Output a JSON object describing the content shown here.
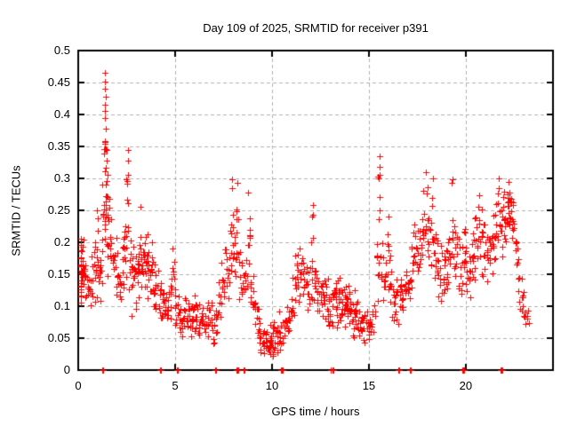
{
  "chart_data": {
    "type": "scatter",
    "title": "Day 109 of 2025, SRMTID for receiver p391",
    "xlabel": "GPS time / hours",
    "ylabel": "SRMTID / TECUs",
    "xlim": [
      0,
      24.5
    ],
    "ylim": [
      0,
      0.5
    ],
    "xticks": [
      0,
      5,
      10,
      15,
      20
    ],
    "xtick_labels": [
      "0",
      "5",
      "10",
      "15",
      "20"
    ],
    "yticks": [
      0,
      0.05,
      0.1,
      0.15,
      0.2,
      0.25,
      0.3,
      0.35,
      0.4,
      0.45,
      0.5
    ],
    "ytick_labels": [
      "0",
      "0.05",
      "0.1",
      "0.15",
      "0.2",
      "0.25",
      "0.3",
      "0.35",
      "0.4",
      "0.45",
      "0.5"
    ],
    "grid": true,
    "legend": "none",
    "marker": {
      "shape": "plus",
      "color": "#ff0000",
      "size": 7
    },
    "grid_color": "#b0b0b0",
    "border_color": "#000000",
    "peak_point": [
      1.37,
      0.465
    ],
    "outlier_points": [
      [
        1.36,
        0.465
      ],
      [
        1.38,
        0.452
      ],
      [
        1.37,
        0.44
      ],
      [
        1.4,
        0.428
      ],
      [
        1.36,
        0.415
      ],
      [
        1.39,
        0.405
      ],
      [
        1.37,
        0.395
      ],
      [
        1.41,
        0.378
      ],
      [
        1.38,
        0.358
      ],
      [
        1.45,
        0.345
      ],
      [
        2.55,
        0.345
      ],
      [
        2.57,
        0.328
      ],
      [
        2.56,
        0.305
      ],
      [
        3.2,
        0.255
      ],
      [
        7.92,
        0.298
      ],
      [
        7.95,
        0.285
      ],
      [
        8.2,
        0.293
      ],
      [
        8.78,
        0.278
      ],
      [
        12.1,
        0.258
      ],
      [
        12.13,
        0.243
      ],
      [
        15.55,
        0.335
      ],
      [
        15.57,
        0.318
      ],
      [
        15.53,
        0.3
      ],
      [
        17.95,
        0.31
      ],
      [
        18.3,
        0.3
      ],
      [
        19.32,
        0.298
      ],
      [
        21.7,
        0.3
      ],
      [
        22.2,
        0.295
      ],
      [
        0.98,
        0.25
      ],
      [
        16.0,
        0.24
      ]
    ],
    "zero_points_x": [
      1.25,
      1.3,
      4.2,
      4.25,
      5.1,
      5.15,
      7.05,
      7.1,
      8.18,
      8.22,
      8.26,
      8.55,
      8.6,
      10.45,
      10.5,
      10.55,
      13.05,
      13.1,
      13.15,
      16.5,
      16.55,
      17.1,
      17.15,
      19.8,
      19.85,
      19.9,
      21.8,
      21.85,
      21.9
    ],
    "density_columns_format": "[hour_center, n_points, y_min, y_max]",
    "density_columns": [
      [
        0.05,
        12,
        0.09,
        0.22
      ],
      [
        0.15,
        14,
        0.09,
        0.23
      ],
      [
        0.25,
        11,
        0.1,
        0.21
      ],
      [
        0.4,
        9,
        0.08,
        0.19
      ],
      [
        0.55,
        8,
        0.09,
        0.18
      ],
      [
        0.7,
        8,
        0.08,
        0.2
      ],
      [
        0.85,
        9,
        0.1,
        0.21
      ],
      [
        1.0,
        10,
        0.1,
        0.25
      ],
      [
        1.15,
        8,
        0.1,
        0.22
      ],
      [
        1.3,
        10,
        0.12,
        0.3
      ],
      [
        1.38,
        14,
        0.15,
        0.42
      ],
      [
        1.45,
        10,
        0.18,
        0.345
      ],
      [
        1.55,
        9,
        0.14,
        0.3
      ],
      [
        1.7,
        8,
        0.12,
        0.26
      ],
      [
        1.85,
        8,
        0.1,
        0.24
      ],
      [
        2.0,
        8,
        0.08,
        0.22
      ],
      [
        2.15,
        8,
        0.08,
        0.2
      ],
      [
        2.3,
        8,
        0.1,
        0.22
      ],
      [
        2.45,
        8,
        0.12,
        0.25
      ],
      [
        2.55,
        7,
        0.15,
        0.34
      ],
      [
        2.7,
        9,
        0.08,
        0.24
      ],
      [
        2.85,
        9,
        0.07,
        0.22
      ],
      [
        3.0,
        9,
        0.06,
        0.21
      ],
      [
        3.15,
        9,
        0.1,
        0.25
      ],
      [
        3.3,
        10,
        0.1,
        0.22
      ],
      [
        3.45,
        10,
        0.12,
        0.22
      ],
      [
        3.6,
        11,
        0.1,
        0.23
      ],
      [
        3.75,
        10,
        0.1,
        0.21
      ],
      [
        3.9,
        9,
        0.08,
        0.19
      ],
      [
        4.05,
        8,
        0.07,
        0.17
      ],
      [
        4.2,
        8,
        0.06,
        0.16
      ],
      [
        4.35,
        8,
        0.06,
        0.15
      ],
      [
        4.5,
        8,
        0.05,
        0.14
      ],
      [
        4.65,
        7,
        0.06,
        0.14
      ],
      [
        4.8,
        7,
        0.06,
        0.16
      ],
      [
        4.9,
        6,
        0.08,
        0.21
      ],
      [
        5.05,
        7,
        0.05,
        0.13
      ],
      [
        5.2,
        7,
        0.05,
        0.12
      ],
      [
        5.35,
        8,
        0.04,
        0.11
      ],
      [
        5.5,
        8,
        0.05,
        0.12
      ],
      [
        5.65,
        8,
        0.05,
        0.11
      ],
      [
        5.8,
        8,
        0.04,
        0.12
      ],
      [
        5.95,
        8,
        0.05,
        0.13
      ],
      [
        6.1,
        8,
        0.05,
        0.12
      ],
      [
        6.25,
        7,
        0.04,
        0.11
      ],
      [
        6.4,
        7,
        0.05,
        0.12
      ],
      [
        6.55,
        7,
        0.04,
        0.1
      ],
      [
        6.7,
        7,
        0.04,
        0.11
      ],
      [
        6.85,
        7,
        0.05,
        0.12
      ],
      [
        7.0,
        6,
        0.04,
        0.1
      ],
      [
        7.15,
        6,
        0.05,
        0.13
      ],
      [
        7.3,
        7,
        0.06,
        0.16
      ],
      [
        7.45,
        7,
        0.08,
        0.19
      ],
      [
        7.6,
        7,
        0.1,
        0.22
      ],
      [
        7.75,
        6,
        0.1,
        0.2
      ],
      [
        7.9,
        9,
        0.12,
        0.3
      ],
      [
        8.05,
        7,
        0.12,
        0.26
      ],
      [
        8.2,
        8,
        0.15,
        0.29
      ],
      [
        8.35,
        7,
        0.1,
        0.22
      ],
      [
        8.5,
        7,
        0.08,
        0.18
      ],
      [
        8.65,
        6,
        0.1,
        0.2
      ],
      [
        8.8,
        8,
        0.14,
        0.28
      ],
      [
        8.95,
        7,
        0.08,
        0.18
      ],
      [
        9.1,
        7,
        0.06,
        0.14
      ],
      [
        9.25,
        7,
        0.04,
        0.12
      ],
      [
        9.4,
        8,
        0.02,
        0.09
      ],
      [
        9.55,
        9,
        0.01,
        0.08
      ],
      [
        9.7,
        9,
        0.015,
        0.08
      ],
      [
        9.85,
        9,
        0.01,
        0.07
      ],
      [
        10.0,
        9,
        0.015,
        0.08
      ],
      [
        10.15,
        8,
        0.02,
        0.09
      ],
      [
        10.3,
        8,
        0.02,
        0.1
      ],
      [
        10.45,
        7,
        0.02,
        0.08
      ],
      [
        10.6,
        7,
        0.03,
        0.1
      ],
      [
        10.75,
        7,
        0.04,
        0.11
      ],
      [
        10.9,
        7,
        0.05,
        0.13
      ],
      [
        11.05,
        7,
        0.06,
        0.15
      ],
      [
        11.2,
        8,
        0.08,
        0.18
      ],
      [
        11.35,
        8,
        0.08,
        0.2
      ],
      [
        11.5,
        8,
        0.1,
        0.21
      ],
      [
        11.65,
        7,
        0.08,
        0.18
      ],
      [
        11.8,
        7,
        0.08,
        0.17
      ],
      [
        11.95,
        7,
        0.08,
        0.18
      ],
      [
        12.1,
        8,
        0.1,
        0.26
      ],
      [
        12.25,
        7,
        0.08,
        0.18
      ],
      [
        12.4,
        8,
        0.07,
        0.16
      ],
      [
        12.55,
        8,
        0.06,
        0.15
      ],
      [
        12.7,
        8,
        0.06,
        0.16
      ],
      [
        12.85,
        8,
        0.05,
        0.15
      ],
      [
        13.0,
        8,
        0.05,
        0.14
      ],
      [
        13.15,
        8,
        0.06,
        0.15
      ],
      [
        13.3,
        9,
        0.06,
        0.16
      ],
      [
        13.45,
        9,
        0.07,
        0.17
      ],
      [
        13.6,
        9,
        0.06,
        0.16
      ],
      [
        13.75,
        9,
        0.05,
        0.15
      ],
      [
        13.9,
        9,
        0.06,
        0.15
      ],
      [
        14.05,
        9,
        0.05,
        0.14
      ],
      [
        14.2,
        9,
        0.04,
        0.13
      ],
      [
        14.35,
        8,
        0.04,
        0.12
      ],
      [
        14.5,
        8,
        0.04,
        0.11
      ],
      [
        14.65,
        8,
        0.03,
        0.1
      ],
      [
        14.8,
        8,
        0.03,
        0.1
      ],
      [
        14.95,
        8,
        0.04,
        0.11
      ],
      [
        15.1,
        7,
        0.04,
        0.1
      ],
      [
        15.25,
        6,
        0.05,
        0.12
      ],
      [
        15.45,
        7,
        0.1,
        0.25
      ],
      [
        15.55,
        8,
        0.12,
        0.33
      ],
      [
        15.7,
        7,
        0.1,
        0.22
      ],
      [
        15.85,
        7,
        0.08,
        0.18
      ],
      [
        16.0,
        8,
        0.1,
        0.24
      ],
      [
        16.15,
        7,
        0.08,
        0.18
      ],
      [
        16.3,
        7,
        0.06,
        0.16
      ],
      [
        16.45,
        7,
        0.06,
        0.15
      ],
      [
        16.6,
        7,
        0.07,
        0.16
      ],
      [
        16.75,
        7,
        0.06,
        0.15
      ],
      [
        16.9,
        7,
        0.08,
        0.17
      ],
      [
        17.05,
        7,
        0.08,
        0.18
      ],
      [
        17.2,
        7,
        0.1,
        0.2
      ],
      [
        17.35,
        7,
        0.1,
        0.25
      ],
      [
        17.5,
        7,
        0.12,
        0.24
      ],
      [
        17.65,
        7,
        0.12,
        0.26
      ],
      [
        17.8,
        8,
        0.15,
        0.3
      ],
      [
        17.95,
        8,
        0.15,
        0.31
      ],
      [
        18.1,
        8,
        0.12,
        0.26
      ],
      [
        18.25,
        8,
        0.15,
        0.3
      ],
      [
        18.4,
        8,
        0.12,
        0.28
      ],
      [
        18.55,
        8,
        0.1,
        0.24
      ],
      [
        18.7,
        8,
        0.1,
        0.22
      ],
      [
        18.85,
        8,
        0.1,
        0.2
      ],
      [
        19.0,
        8,
        0.1,
        0.21
      ],
      [
        19.15,
        7,
        0.12,
        0.24
      ],
      [
        19.3,
        7,
        0.15,
        0.3
      ],
      [
        19.45,
        7,
        0.12,
        0.28
      ],
      [
        19.6,
        7,
        0.1,
        0.24
      ],
      [
        19.75,
        7,
        0.1,
        0.22
      ],
      [
        19.9,
        7,
        0.12,
        0.27
      ],
      [
        20.05,
        7,
        0.1,
        0.22
      ],
      [
        20.2,
        7,
        0.1,
        0.2
      ],
      [
        20.35,
        7,
        0.12,
        0.22
      ],
      [
        20.5,
        8,
        0.13,
        0.26
      ],
      [
        20.65,
        8,
        0.15,
        0.285
      ],
      [
        20.8,
        8,
        0.14,
        0.27
      ],
      [
        20.95,
        7,
        0.13,
        0.25
      ],
      [
        21.1,
        7,
        0.12,
        0.24
      ],
      [
        21.25,
        7,
        0.13,
        0.25
      ],
      [
        21.4,
        7,
        0.14,
        0.26
      ],
      [
        21.55,
        8,
        0.15,
        0.28
      ],
      [
        21.7,
        8,
        0.16,
        0.3
      ],
      [
        21.85,
        8,
        0.15,
        0.28
      ],
      [
        22.0,
        9,
        0.18,
        0.29
      ],
      [
        22.15,
        10,
        0.2,
        0.295
      ],
      [
        22.3,
        10,
        0.2,
        0.29
      ],
      [
        22.45,
        9,
        0.18,
        0.28
      ],
      [
        22.6,
        7,
        0.12,
        0.25
      ],
      [
        22.75,
        6,
        0.07,
        0.18
      ],
      [
        22.9,
        6,
        0.05,
        0.15
      ],
      [
        23.05,
        5,
        0.05,
        0.13
      ],
      [
        23.2,
        4,
        0.06,
        0.12
      ]
    ]
  }
}
